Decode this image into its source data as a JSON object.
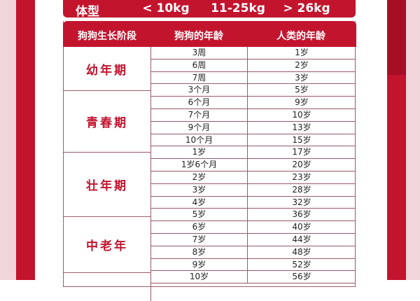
{
  "banner": {
    "label": "体型",
    "small": "< 10kg",
    "medium": "11-25kg",
    "large": "> 26kg"
  },
  "headers": [
    "狗狗生长阶段",
    "狗狗的年龄",
    "人类的年龄"
  ],
  "stages": [
    "幼年期",
    "青春期",
    "壮年期",
    "中老年"
  ],
  "rows": [
    {
      "dog": "3周",
      "human": "1岁"
    },
    {
      "dog": "6周",
      "human": "2岁"
    },
    {
      "dog": "7周",
      "human": "3岁"
    },
    {
      "dog": "3个月",
      "human": "5岁"
    },
    {
      "dog": "6个月",
      "human": "9岁"
    },
    {
      "dog": "7个月",
      "human": "10岁"
    },
    {
      "dog": "9个月",
      "human": "13岁"
    },
    {
      "dog": "10个月",
      "human": "15岁"
    },
    {
      "dog": "1岁",
      "human": "17岁"
    },
    {
      "dog": "1岁6个月",
      "human": "20岁"
    },
    {
      "dog": "2岁",
      "human": "23岁"
    },
    {
      "dog": "3岁",
      "human": "28岁"
    },
    {
      "dog": "4岁",
      "human": "32岁"
    },
    {
      "dog": "5岁",
      "human": "36岁"
    },
    {
      "dog": "6岁",
      "human": "40岁"
    },
    {
      "dog": "7岁",
      "human": "44岁"
    },
    {
      "dog": "8岁",
      "human": "48岁"
    },
    {
      "dog": "9岁",
      "human": "52岁"
    },
    {
      "dog": "10岁",
      "human": "56岁"
    }
  ],
  "colors": {
    "accent": "#c3142e",
    "background_pink": "#f0d6da",
    "border": "#9a5a68"
  }
}
